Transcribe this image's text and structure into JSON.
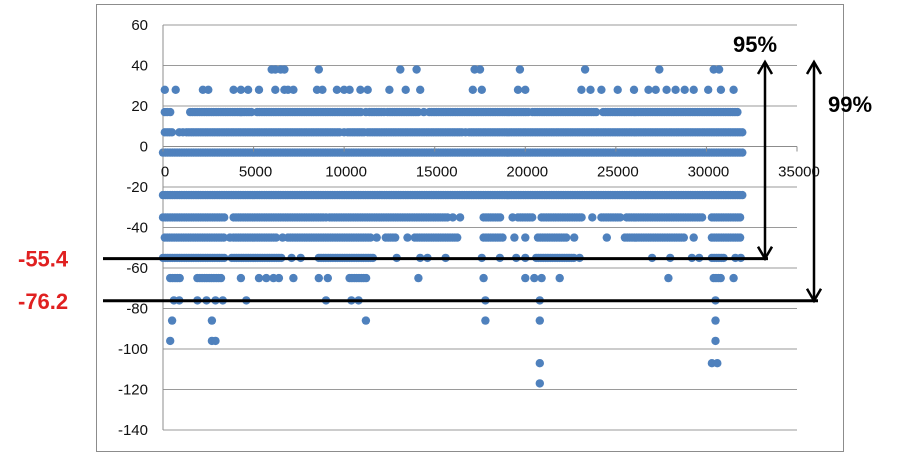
{
  "chart_data": {
    "type": "scatter",
    "title": "",
    "xlabel": "",
    "ylabel": "",
    "xlim": [
      0,
      35000
    ],
    "ylim": [
      -140,
      60
    ],
    "x_ticks": [
      0,
      5000,
      10000,
      15000,
      20000,
      25000,
      30000,
      35000
    ],
    "y_ticks": [
      60,
      40,
      20,
      0,
      -20,
      -40,
      -60,
      -80,
      -100,
      -120,
      -140
    ],
    "grid": "horizontal",
    "legend": "none",
    "marker_color": "#4f81bd",
    "x_max_data": 32000,
    "levels": [
      {
        "y": 38,
        "x": [
          6000,
          6200,
          6500,
          6700,
          8600,
          13100,
          14000,
          17200,
          17500,
          19700,
          23300,
          27400,
          30400,
          30700
        ]
      },
      {
        "y": 28,
        "x": [
          100,
          700,
          2200,
          2500,
          3900,
          4300,
          4700,
          5300,
          6200,
          6700,
          6900,
          7200,
          8500,
          8800,
          9600,
          10000,
          10300,
          10900,
          11300,
          12500,
          13400,
          14200,
          17100,
          17600,
          19600,
          20000,
          23100,
          23600,
          24200,
          25100,
          26000,
          26800,
          27200,
          27800,
          28300,
          28800,
          29300,
          30100,
          30800,
          31500
        ]
      },
      {
        "y": 17,
        "dense": [
          [
            100,
            300
          ],
          [
            1500,
            5000
          ],
          [
            5200,
            11000
          ],
          [
            11400,
            12100
          ],
          [
            12400,
            14200
          ],
          [
            14700,
            20200
          ],
          [
            20400,
            24000
          ],
          [
            24300,
            31800
          ]
        ],
        "x": [
          400,
          4300,
          11200,
          12200,
          14400
        ]
      },
      {
        "y": 7,
        "dense": [
          [
            100,
            500
          ],
          [
            1300,
            9800
          ],
          [
            10200,
            11000
          ],
          [
            11300,
            16600
          ],
          [
            16900,
            32000
          ]
        ],
        "x": [
          900,
          1100,
          10000,
          11100,
          16700
        ]
      },
      {
        "y": -3,
        "dense": [
          [
            0,
            32000
          ]
        ]
      },
      {
        "y": -24,
        "dense": [
          [
            0,
            32000
          ]
        ]
      },
      {
        "y": -35,
        "dense": [
          [
            0,
            3400
          ],
          [
            3900,
            8900
          ],
          [
            9200,
            15800
          ],
          [
            17700,
            18700
          ],
          [
            19600,
            20500
          ],
          [
            20900,
            23200
          ],
          [
            24200,
            25300
          ],
          [
            25600,
            29800
          ],
          [
            30300,
            31900
          ]
        ],
        "x": [
          9000,
          16000,
          16400,
          19300,
          23700
        ]
      },
      {
        "y": -45,
        "dense": [
          [
            100,
            3400
          ],
          [
            3900,
            6300
          ],
          [
            6900,
            11500
          ],
          [
            12300,
            12900
          ],
          [
            13900,
            16300
          ],
          [
            17700,
            18800
          ],
          [
            20700,
            22300
          ],
          [
            25500,
            28800
          ],
          [
            30300,
            31900
          ]
        ],
        "x": [
          3700,
          6600,
          11800,
          13500,
          19400,
          20000,
          22700,
          24500,
          29300
        ]
      },
      {
        "y": -55,
        "dense": [
          [
            0,
            3400
          ],
          [
            3800,
            6600
          ],
          [
            8600,
            11600
          ],
          [
            20600,
            22700
          ],
          [
            30300,
            31000
          ]
        ],
        "x": [
          7100,
          7600,
          12900,
          14200,
          14600,
          15600,
          17600,
          18600,
          19500,
          20000,
          23000,
          27000,
          28000,
          29200,
          29600,
          31600,
          31900
        ]
      },
      {
        "y": -65,
        "dense": [
          [
            400,
            1000
          ],
          [
            1900,
            3300
          ],
          [
            10300,
            11300
          ],
          [
            30400,
            30900
          ]
        ],
        "x": [
          4300,
          5300,
          5700,
          6100,
          6400,
          7200,
          8600,
          9100,
          14100,
          17700,
          20000,
          20500,
          20900,
          21900,
          27900,
          31500
        ]
      },
      {
        "y": -76,
        "x": [
          600,
          900,
          1900,
          2400,
          2900,
          3300,
          4600,
          9000,
          10400,
          10800,
          17800,
          20800,
          30500
        ]
      },
      {
        "y": -86,
        "x": [
          500,
          2700,
          11200,
          17800,
          20800,
          30500
        ]
      },
      {
        "y": -96,
        "x": [
          400,
          2700,
          2900,
          30500
        ]
      },
      {
        "y": -107,
        "x": [
          20800,
          30300,
          30600
        ]
      },
      {
        "y": -117,
        "x": [
          20800
        ]
      }
    ]
  },
  "annotations": {
    "line_95_label": "-55.4",
    "line_99_label": "-76.2",
    "bracket_95_label": "95%",
    "bracket_99_label": "99%",
    "line_95_value": -55.4,
    "line_99_value": -76.2,
    "line_color": "#000000",
    "label_color": "#e02020"
  }
}
